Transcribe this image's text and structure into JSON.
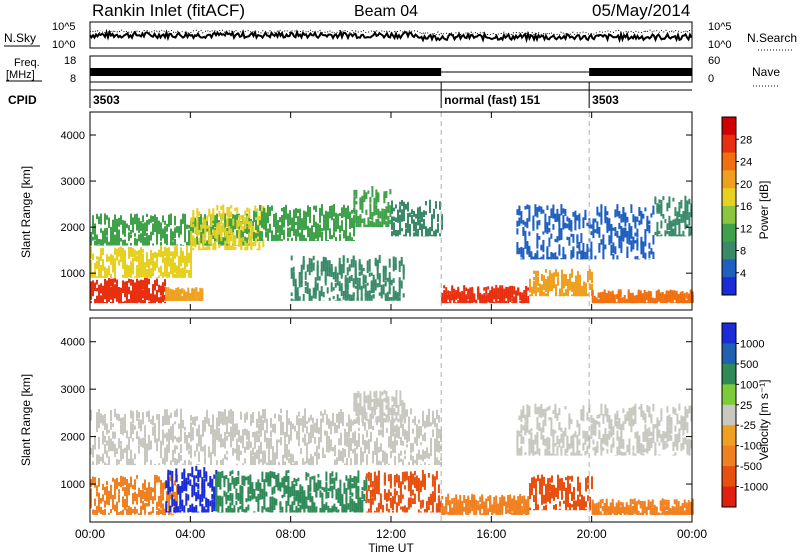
{
  "header": {
    "station": "Rankin Inlet (fitACF)",
    "beam": "Beam 04",
    "date": "05/May/2014"
  },
  "strip_labels": {
    "nsky": "N.Sky",
    "nsearch": "N.Search",
    "freq": "Freq.",
    "freq_unit": "[MHz]",
    "nave": "Nave",
    "cpid": "CPID"
  },
  "strip_ticks": {
    "noise_left_top": "10^5",
    "noise_left_bottom": "10^0",
    "noise_right_top": "10^5",
    "noise_right_bottom": "10^0",
    "freq_top": "18",
    "freq_bottom": "8",
    "nave_top": "60",
    "nave_bottom": "0"
  },
  "cpid_segments": [
    {
      "start_hour": 0,
      "end_hour": 14.0,
      "label": "3503"
    },
    {
      "start_hour": 14.0,
      "end_hour": 19.9,
      "label": "normal (fast) 151"
    },
    {
      "start_hour": 19.9,
      "end_hour": 24,
      "label": "3503"
    }
  ],
  "colors": {
    "power": [
      "#1a2bd8",
      "#1f5fbf",
      "#3a8a6a",
      "#3fa24a",
      "#8cc63f",
      "#e8d020",
      "#f0a020",
      "#f07010",
      "#e83010",
      "#d00000"
    ],
    "velocity": [
      "#1a2bd8",
      "#2060b0",
      "#2e8b57",
      "#7ccc3a",
      "#c8c8c0",
      "#f0a020",
      "#f08020",
      "#e85010",
      "#e02010"
    ],
    "dashed_line": "#b0b0b0"
  },
  "chart_data": [
    {
      "type": "heatmap",
      "panel": "power",
      "xlabel": "",
      "ylabel": "Slant Range [km]",
      "xlim": [
        0,
        24
      ],
      "ylim": [
        200,
        4500
      ],
      "y_ticks": [
        1000,
        2000,
        3000,
        4000
      ],
      "colorbar": {
        "label": "Power [dB]",
        "ticks": [
          4,
          8,
          12,
          16,
          20,
          24,
          28
        ],
        "range": [
          0,
          32
        ]
      },
      "mode_change_hours": [
        14.0,
        19.9
      ],
      "bands": [
        {
          "start_hour": 0.0,
          "end_hour": 3.0,
          "range_min": 350,
          "range_max": 900,
          "value": 27
        },
        {
          "start_hour": 0.0,
          "end_hour": 4.0,
          "range_min": 900,
          "range_max": 1600,
          "value": 17
        },
        {
          "start_hour": 0.0,
          "end_hour": 6.5,
          "range_min": 1600,
          "range_max": 2300,
          "value": 11
        },
        {
          "start_hour": 3.0,
          "end_hour": 4.5,
          "range_min": 400,
          "range_max": 700,
          "value": 22
        },
        {
          "start_hour": 4.0,
          "end_hour": 7.0,
          "range_min": 1500,
          "range_max": 2500,
          "value": 19
        },
        {
          "start_hour": 6.5,
          "end_hour": 10.5,
          "range_min": 1700,
          "range_max": 2500,
          "value": 12
        },
        {
          "start_hour": 8.0,
          "end_hour": 12.5,
          "range_min": 400,
          "range_max": 1400,
          "value": 9
        },
        {
          "start_hour": 10.5,
          "end_hour": 12.0,
          "range_min": 2000,
          "range_max": 2900,
          "value": 10
        },
        {
          "start_hour": 12.0,
          "end_hour": 14.0,
          "range_min": 1800,
          "range_max": 2600,
          "value": 7
        },
        {
          "start_hour": 14.0,
          "end_hour": 17.5,
          "range_min": 350,
          "range_max": 750,
          "value": 26
        },
        {
          "start_hour": 17.5,
          "end_hour": 20.0,
          "range_min": 500,
          "range_max": 1100,
          "value": 20
        },
        {
          "start_hour": 17.0,
          "end_hour": 22.5,
          "range_min": 1300,
          "range_max": 2500,
          "value": 5
        },
        {
          "start_hour": 20.0,
          "end_hour": 24.0,
          "range_min": 350,
          "range_max": 650,
          "value": 24
        },
        {
          "start_hour": 22.5,
          "end_hour": 24.0,
          "range_min": 1800,
          "range_max": 2700,
          "value": 8
        }
      ]
    },
    {
      "type": "heatmap",
      "panel": "velocity",
      "xlabel": "Time UT",
      "ylabel": "Slant Range [km]",
      "xlim": [
        0,
        24
      ],
      "ylim": [
        200,
        4500
      ],
      "x_ticks": [
        "00:00",
        "04:00",
        "08:00",
        "12:00",
        "16:00",
        "20:00",
        "00:00"
      ],
      "y_ticks": [
        1000,
        2000,
        3000,
        4000
      ],
      "colorbar": {
        "label": "Velocity [m s⁻¹]",
        "ticks": [
          1000,
          500,
          100,
          25,
          -25,
          -100,
          -500,
          -1000
        ]
      },
      "mode_change_hours": [
        14.0,
        19.9
      ],
      "bands": [
        {
          "start_hour": 0.0,
          "end_hour": 3.5,
          "range_min": 350,
          "range_max": 1200,
          "value": -200
        },
        {
          "start_hour": 3.0,
          "end_hour": 5.0,
          "range_min": 400,
          "range_max": 1400,
          "value": 800
        },
        {
          "start_hour": 5.0,
          "end_hour": 11.0,
          "range_min": 400,
          "range_max": 1300,
          "value": 200
        },
        {
          "start_hour": 0.0,
          "end_hour": 14.0,
          "range_min": 1400,
          "range_max": 2600,
          "value": 0
        },
        {
          "start_hour": 10.5,
          "end_hour": 12.5,
          "range_min": 2300,
          "range_max": 3000,
          "value": 0
        },
        {
          "start_hour": 11.0,
          "end_hour": 14.0,
          "range_min": 400,
          "range_max": 1300,
          "value": -300
        },
        {
          "start_hour": 14.0,
          "end_hour": 17.5,
          "range_min": 350,
          "range_max": 800,
          "value": -150
        },
        {
          "start_hour": 17.5,
          "end_hour": 20.0,
          "range_min": 450,
          "range_max": 1200,
          "value": -400
        },
        {
          "start_hour": 20.0,
          "end_hour": 24.0,
          "range_min": 350,
          "range_max": 700,
          "value": -250
        },
        {
          "start_hour": 17.0,
          "end_hour": 24.0,
          "range_min": 1600,
          "range_max": 2700,
          "value": 0
        }
      ]
    }
  ]
}
